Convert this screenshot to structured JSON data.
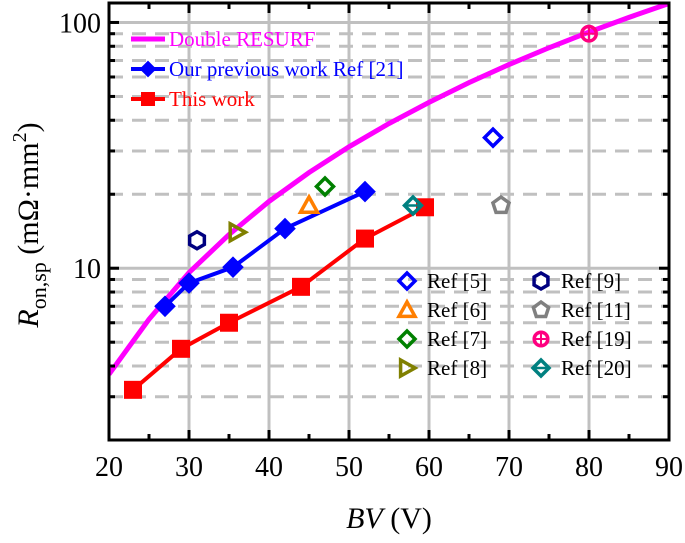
{
  "chart_data": {
    "type": "scatter",
    "xlabel": "BV (V)",
    "xlabel_italic": "BV",
    "xlabel_unit": "(V)",
    "ylabel_main": "R",
    "ylabel_sub": "on,sp",
    "ylabel_unit": "(mΩ·mm",
    "ylabel_sup": "2",
    "ylabel_close": ")",
    "xlim": [
      20,
      90
    ],
    "ylim": [
      2,
      120
    ],
    "yscale": "log",
    "xticks": [
      "20",
      "30",
      "40",
      "50",
      "60",
      "70",
      "80",
      "90"
    ],
    "yticks": [
      "10",
      "100"
    ],
    "grid": true,
    "legend_placement": [
      "top-left",
      "bottom-right"
    ],
    "series": [
      {
        "name": "Double RESURF",
        "kind": "line",
        "color": "#ff00ff",
        "x": [
          20,
          25,
          30,
          35,
          40,
          45,
          50,
          55,
          60,
          65,
          70,
          75,
          80,
          85,
          90
        ],
        "y": [
          3.7,
          6.2,
          9.6,
          13.7,
          18.7,
          24.5,
          31.2,
          38.8,
          47.3,
          56.9,
          67.4,
          78.9,
          91.4,
          104.9,
          119.5
        ]
      },
      {
        "name": "Our previous work Ref [21]",
        "kind": "line-marker",
        "marker": "diamond-filled",
        "color": "#0000ff",
        "x": [
          27,
          30,
          35.5,
          42,
          52
        ],
        "y": [
          7,
          8.7,
          10.1,
          14.5,
          20.5
        ]
      },
      {
        "name": "This work",
        "kind": "line-marker",
        "marker": "square-filled",
        "color": "#ff0000",
        "x": [
          23,
          29,
          35,
          44,
          52,
          59.5
        ],
        "y": [
          3.2,
          4.7,
          6,
          8.4,
          13.2,
          17.7
        ]
      },
      {
        "name": "Ref [5]",
        "marker": "diamond",
        "color": "#0000ff",
        "x": [
          68
        ],
        "y": [
          34
        ]
      },
      {
        "name": "Ref [6]",
        "marker": "triangle-up",
        "color": "#ff7f00",
        "x": [
          45
        ],
        "y": [
          18
        ]
      },
      {
        "name": "Ref [7]",
        "marker": "diamond",
        "color": "#008000",
        "x": [
          47
        ],
        "y": [
          21.5
        ]
      },
      {
        "name": "Ref [8]",
        "marker": "triangle-right",
        "color": "#808000",
        "x": [
          36
        ],
        "y": [
          14
        ]
      },
      {
        "name": "Ref [9]",
        "marker": "hexagon",
        "color": "#000080",
        "x": [
          31
        ],
        "y": [
          13
        ]
      },
      {
        "name": "Ref [11]",
        "marker": "pentagon",
        "color": "#808080",
        "x": [
          69
        ],
        "y": [
          18
        ]
      },
      {
        "name": "Ref [19]",
        "marker": "circle-plus",
        "color": "#ff0080",
        "x": [
          80
        ],
        "y": [
          90
        ]
      },
      {
        "name": "Ref [20]",
        "marker": "diamond-line",
        "color": "#008080",
        "x": [
          58
        ],
        "y": [
          18
        ]
      }
    ]
  }
}
